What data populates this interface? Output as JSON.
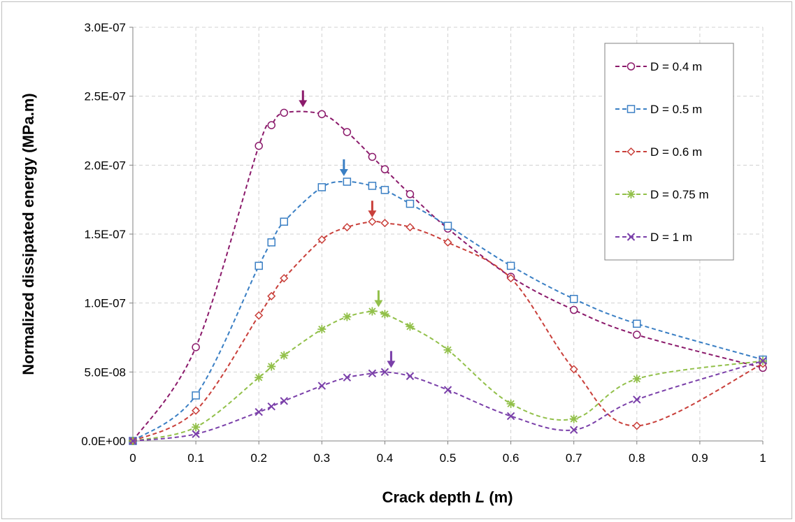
{
  "chart_data": {
    "type": "line",
    "xlabel": "Crack depth",
    "xlabel_var": "L",
    "xlabel_unit": "(m)",
    "ylabel": "Normalized dissipated energy (MPa.m)",
    "xlim": [
      0,
      1
    ],
    "ylim": [
      0,
      3e-07
    ],
    "x_ticks": [
      0,
      0.1,
      0.2,
      0.3,
      0.4,
      0.5,
      0.6,
      0.7,
      0.8,
      0.9,
      1
    ],
    "x_tick_labels": [
      "0",
      "0.1",
      "0.2",
      "0.3",
      "0.4",
      "0.5",
      "0.6",
      "0.7",
      "0.8",
      "0.9",
      "1"
    ],
    "y_ticks": [
      0,
      5e-08,
      1e-07,
      1.5e-07,
      2e-07,
      2.5e-07,
      3e-07
    ],
    "y_tick_labels": [
      "0.0E+00",
      "5.0E-08",
      "1.0E-07",
      "1.5E-07",
      "2.0E-07",
      "2.5E-07",
      "3.0E-07"
    ],
    "grid": "dashed",
    "legend_position": "top-right",
    "series": [
      {
        "name": "D = 0.4 m",
        "color": "#8b1a6b",
        "marker": "circle",
        "x": [
          0,
          0.1,
          0.2,
          0.22,
          0.24,
          0.3,
          0.34,
          0.38,
          0.4,
          0.44,
          0.5,
          0.6,
          0.7,
          0.8,
          1
        ],
        "y": [
          0,
          6.8e-08,
          2.14e-07,
          2.29e-07,
          2.38e-07,
          2.37e-07,
          2.24e-07,
          2.06e-07,
          1.97e-07,
          1.79e-07,
          1.54e-07,
          1.19e-07,
          9.5e-08,
          7.7e-08,
          5.3e-08
        ],
        "peak_arrow": [
          0.27,
          2.39e-07
        ]
      },
      {
        "name": "D = 0.5 m",
        "color": "#3a7fc4",
        "marker": "square",
        "x": [
          0,
          0.1,
          0.2,
          0.22,
          0.24,
          0.3,
          0.34,
          0.38,
          0.4,
          0.44,
          0.5,
          0.6,
          0.7,
          0.8,
          1
        ],
        "y": [
          0,
          3.3e-08,
          1.27e-07,
          1.44e-07,
          1.59e-07,
          1.84e-07,
          1.88e-07,
          1.85e-07,
          1.82e-07,
          1.72e-07,
          1.56e-07,
          1.27e-07,
          1.03e-07,
          8.5e-08,
          5.9e-08
        ],
        "peak_arrow": [
          0.335,
          1.89e-07
        ]
      },
      {
        "name": "D = 0.6 m",
        "color": "#c9403b",
        "marker": "diamond",
        "x": [
          0,
          0.1,
          0.2,
          0.22,
          0.24,
          0.3,
          0.34,
          0.38,
          0.4,
          0.44,
          0.5,
          0.6,
          0.7,
          0.8,
          1
        ],
        "y": [
          0,
          2.2e-08,
          9.1e-08,
          1.05e-07,
          1.18e-07,
          1.46e-07,
          1.55e-07,
          1.59e-07,
          1.58e-07,
          1.55e-07,
          1.44e-07,
          1.18e-07,
          5.2e-08,
          1.1e-08,
          5.6e-08
        ],
        "peak_arrow": [
          0.38,
          1.59e-07
        ]
      },
      {
        "name": "D = 0.75 m",
        "color": "#92c04a",
        "marker": "asterisk",
        "x": [
          0,
          0.1,
          0.2,
          0.22,
          0.24,
          0.3,
          0.34,
          0.38,
          0.4,
          0.44,
          0.5,
          0.6,
          0.7,
          0.8,
          1
        ],
        "y": [
          0,
          1e-08,
          4.6e-08,
          5.4e-08,
          6.2e-08,
          8.1e-08,
          9e-08,
          9.4e-08,
          9.2e-08,
          8.3e-08,
          6.6e-08,
          2.7e-08,
          1.6e-08,
          4.5e-08,
          5.8e-08
        ],
        "peak_arrow": [
          0.39,
          9.4e-08
        ]
      },
      {
        "name": "D = 1 m",
        "color": "#7a3fa9",
        "marker": "x",
        "x": [
          0,
          0.1,
          0.2,
          0.22,
          0.24,
          0.3,
          0.34,
          0.38,
          0.4,
          0.44,
          0.5,
          0.6,
          0.7,
          0.8,
          1
        ],
        "y": [
          0,
          5e-09,
          2.1e-08,
          2.5e-08,
          2.9e-08,
          4e-08,
          4.6e-08,
          4.9e-08,
          5e-08,
          4.7e-08,
          3.7e-08,
          1.8e-08,
          8e-09,
          3e-08,
          5.8e-08
        ],
        "peak_arrow": [
          0.41,
          5e-08
        ]
      }
    ]
  }
}
